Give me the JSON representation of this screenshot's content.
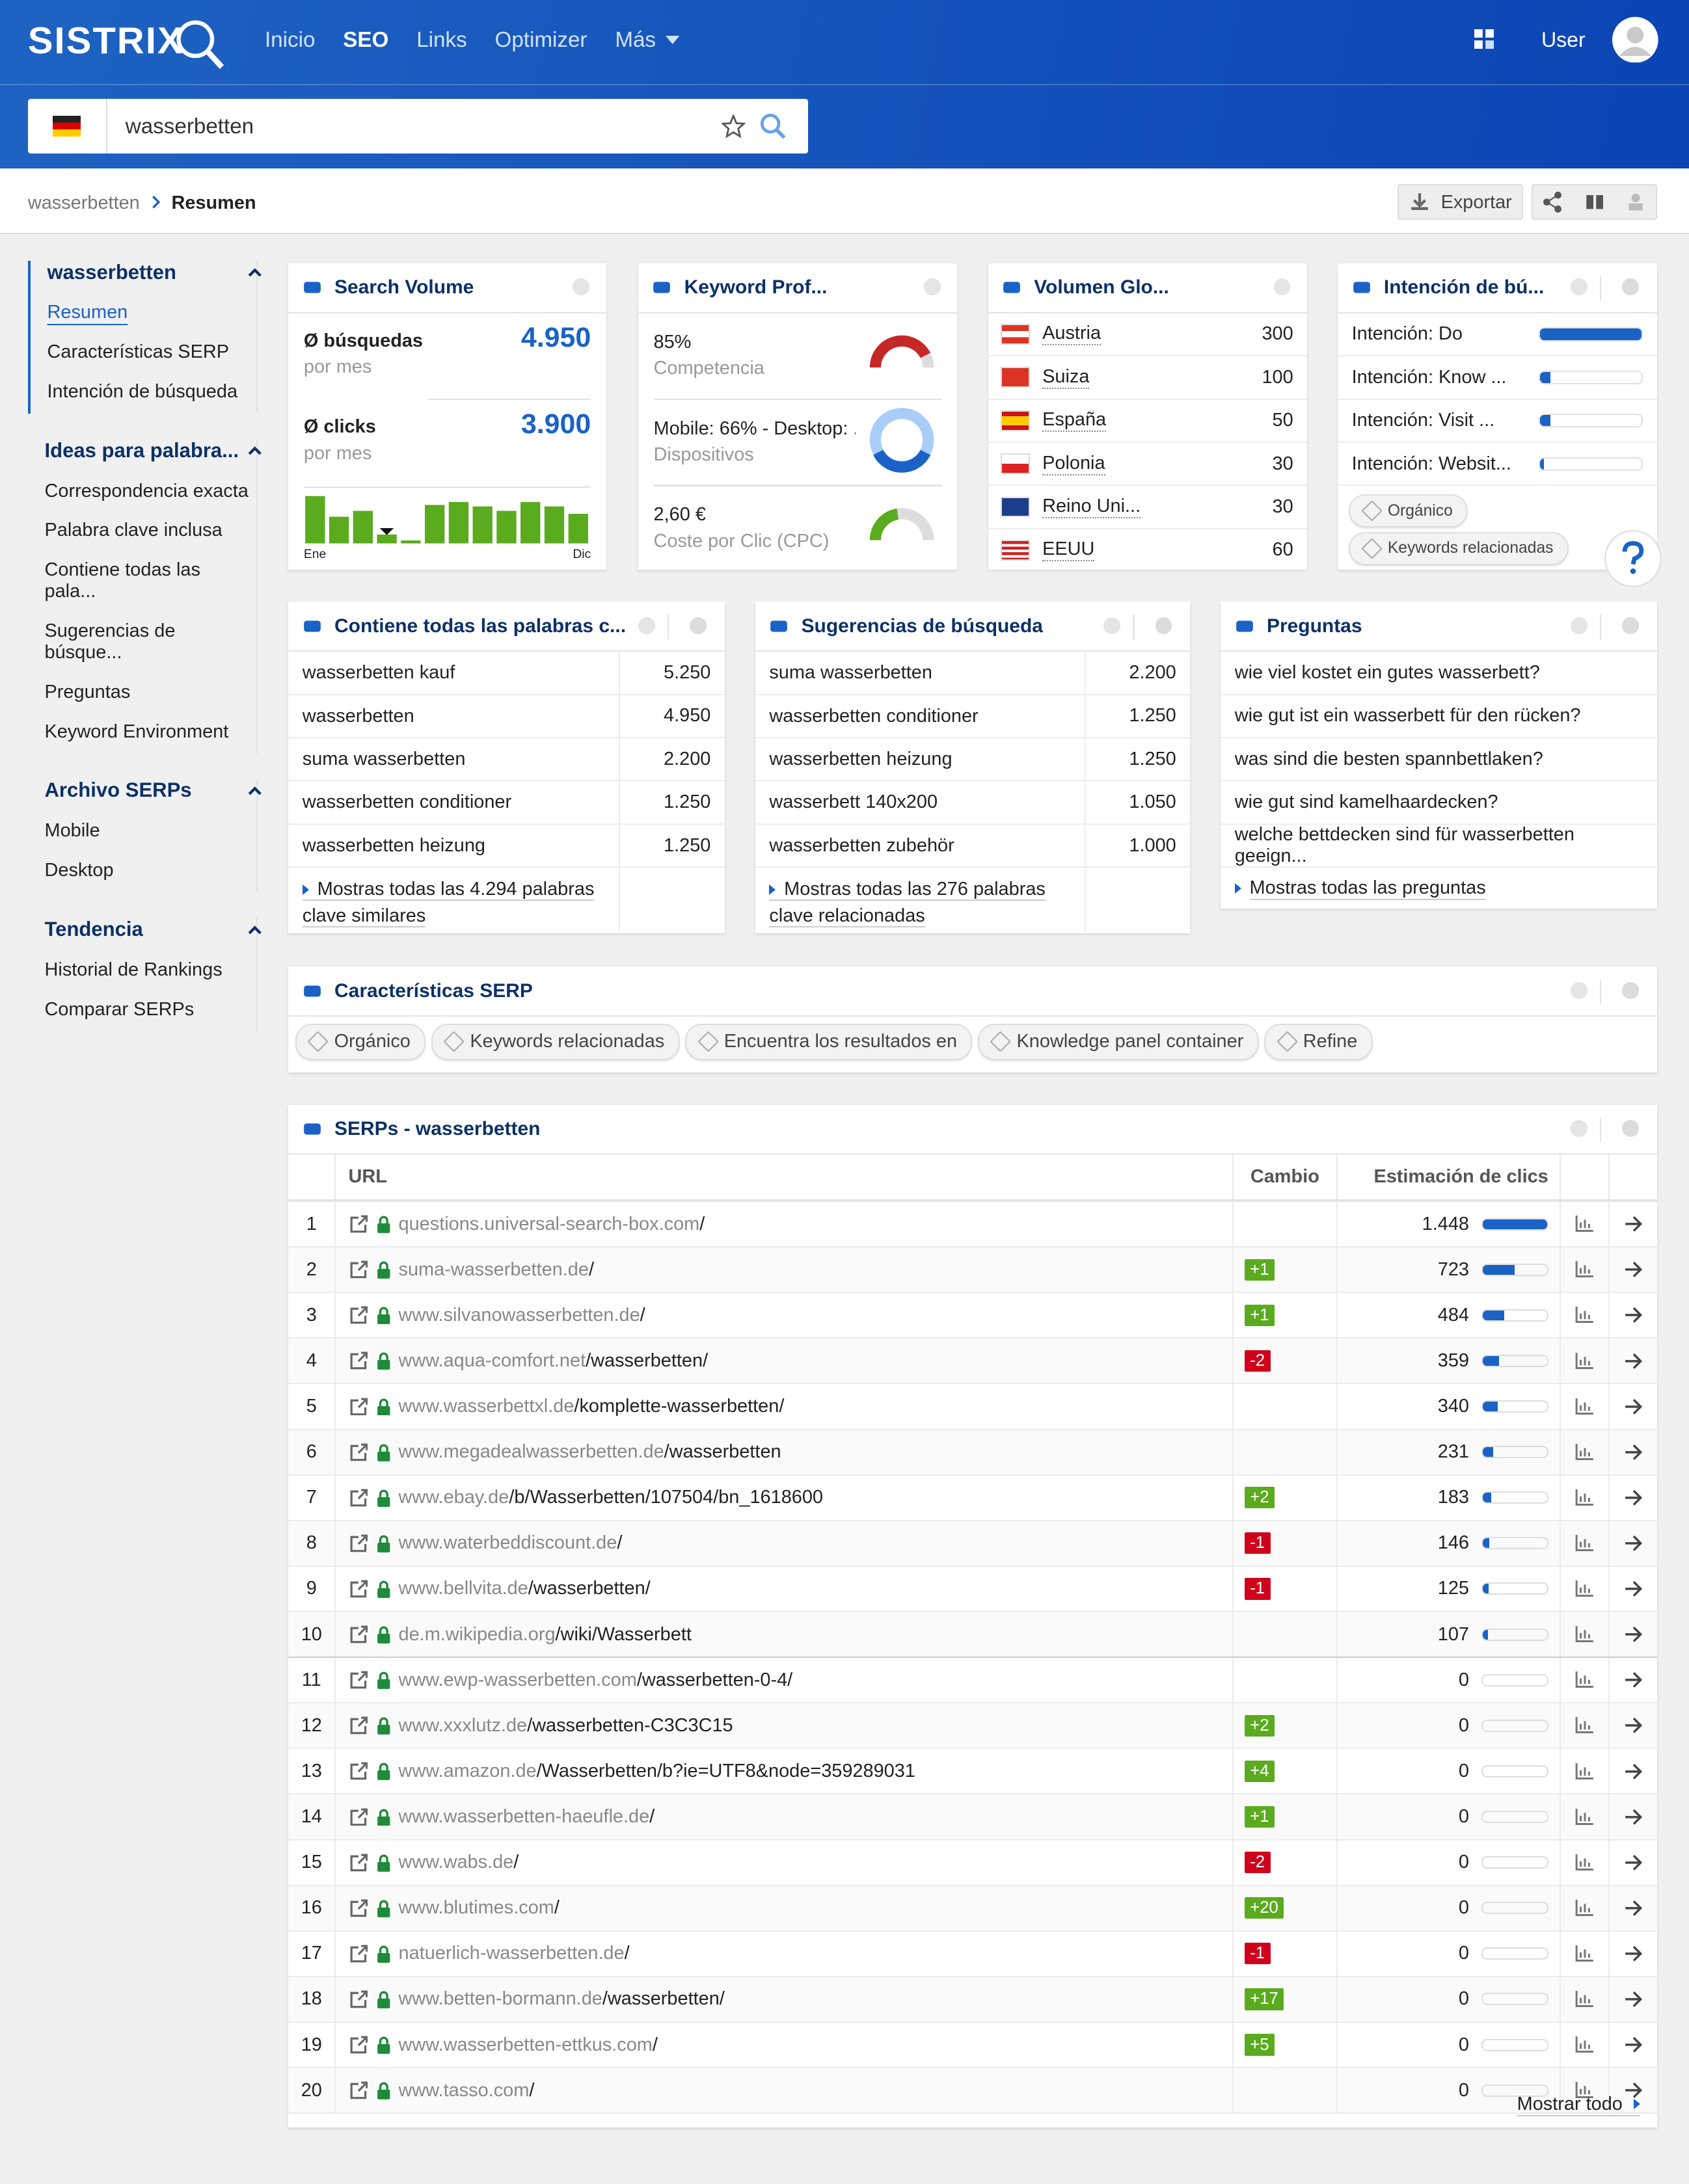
{
  "header": {
    "logo": "SISTRIX",
    "nav": [
      "Inicio",
      "SEO",
      "Links",
      "Optimizer",
      "Más"
    ],
    "user": "User",
    "search": "wasserbetten"
  },
  "breadcrumb": {
    "root": "wasserbetten",
    "current": "Resumen",
    "export": "Exportar"
  },
  "sidebar": [
    {
      "title": "wasserbetten",
      "items": [
        "Resumen",
        "Características SERP",
        "Intención de búsqueda"
      ]
    },
    {
      "title": "Ideas para palabra...",
      "items": [
        "Correspondencia exacta",
        "Palabra clave inclusa",
        "Contiene todas las pala...",
        "Sugerencias de búsque...",
        "Preguntas",
        "Keyword Environment"
      ]
    },
    {
      "title": "Archivo SERPs",
      "items": [
        "Mobile",
        "Desktop"
      ]
    },
    {
      "title": "Tendencia",
      "items": [
        "Historial de Rankings",
        "Comparar SERPs"
      ]
    }
  ],
  "search_volume": {
    "title": "Search Volume",
    "searches_label": "Ø búsquedas",
    "searches_sub": "por mes",
    "searches": "4.950",
    "clicks_label": "Ø clicks",
    "clicks_sub": "por mes",
    "clicks": "3.900",
    "trend": [
      32,
      18,
      22,
      6,
      2,
      26,
      28,
      25,
      22,
      28,
      25,
      20
    ],
    "trend_start": "Ene",
    "trend_end": "Dic"
  },
  "keyword_profile": {
    "title": "Keyword Prof...",
    "competition": {
      "value": 85,
      "label": "85%"
    },
    "competition_label": "Competencia",
    "devices": "Mobile: 66% - Desktop: ...",
    "devices_label": "Dispositivos",
    "cpc": "2,60 €",
    "cpc_label": "Coste por Clic (CPC)"
  },
  "global_volume": {
    "title": "Volumen Glo...",
    "rows": [
      {
        "country": "Austria",
        "volume": "300"
      },
      {
        "country": "Suiza",
        "volume": "100"
      },
      {
        "country": "España",
        "volume": "50"
      },
      {
        "country": "Polonia",
        "volume": "30"
      },
      {
        "country": "Reino Uni...",
        "volume": "30"
      },
      {
        "country": "EEUU",
        "volume": "60"
      }
    ]
  },
  "intent": {
    "title": "Intención de bú...",
    "rows": [
      {
        "label": "Intención: Do",
        "share": 100
      },
      {
        "label": "Intención: Know ...",
        "share": 10
      },
      {
        "label": "Intención: Visit ...",
        "share": 10
      },
      {
        "label": "Intención: Websit...",
        "share": 4
      }
    ],
    "tags": [
      "Orgánico",
      "Keywords relacionadas"
    ]
  },
  "contains_all": {
    "title": "Contiene todas las palabras c...",
    "rows": [
      [
        "wasserbetten kauf",
        "5.250"
      ],
      [
        "wasserbetten",
        "4.950"
      ],
      [
        "suma wasserbetten",
        "2.200"
      ],
      [
        "wasserbetten conditioner",
        "1.250"
      ],
      [
        "wasserbetten heizung",
        "1.250"
      ]
    ],
    "more": "Mostras todas las 4.294 palabras clave similares"
  },
  "suggestions": {
    "title": "Sugerencias de búsqueda",
    "rows": [
      [
        "suma wasserbetten",
        "2.200"
      ],
      [
        "wasserbetten conditioner",
        "1.250"
      ],
      [
        "wasserbetten heizung",
        "1.250"
      ],
      [
        "wasserbett 140x200",
        "1.050"
      ],
      [
        "wasserbetten zubehör",
        "1.000"
      ]
    ],
    "more": "Mostras todas las 276 palabras clave relacionadas"
  },
  "questions": {
    "title": "Preguntas",
    "rows": [
      "wie viel kostet ein gutes wasserbett?",
      "wie gut ist ein wasserbett für den rücken?",
      "was sind die besten spannbettlaken?",
      "wie gut sind kamelhaardecken?",
      "welche bettdecken sind für wasserbetten geeign..."
    ],
    "more": "Mostras todas las preguntas"
  },
  "serp_features": {
    "title": "Características SERP",
    "tags": [
      "Orgánico",
      "Keywords relacionadas",
      "Encuentra los resultados en",
      "Knowledge panel container",
      "Refine"
    ]
  },
  "serps": {
    "title": "SERPs - wasserbetten",
    "columns": [
      "URL",
      "Cambio",
      "Estimación de clics"
    ],
    "show_all": "Mostrar todo",
    "rows": [
      {
        "pos": 1,
        "domain": "questions.universal-search-box.com",
        "path": "/",
        "change": null,
        "clicks": {
          "value": 1448,
          "label": "1.448"
        }
      },
      {
        "pos": 2,
        "domain": "suma-wasserbetten.de",
        "path": "/",
        "change": "+1",
        "clicks": 723
      },
      {
        "pos": 3,
        "domain": "www.silvanowasserbetten.de",
        "path": "/",
        "change": "+1",
        "clicks": 484
      },
      {
        "pos": 4,
        "domain": "www.aqua-comfort.net",
        "path": "/wasserbetten/",
        "change": "-2",
        "clicks": 359
      },
      {
        "pos": 5,
        "domain": "www.wasserbettxl.de",
        "path": "/komplette-wasserbetten/",
        "change": null,
        "clicks": 340
      },
      {
        "pos": 6,
        "domain": "www.megadealwasserbetten.de",
        "path": "/wasserbetten",
        "change": null,
        "clicks": 231
      },
      {
        "pos": 7,
        "domain": "www.ebay.de",
        "path": "/b/Wasserbetten/107504/bn_1618600",
        "change": "+2",
        "clicks": 183
      },
      {
        "pos": 8,
        "domain": "www.waterbeddiscount.de",
        "path": "/",
        "change": "-1",
        "clicks": 146
      },
      {
        "pos": 9,
        "domain": "www.bellvita.de",
        "path": "/wasserbetten/",
        "change": "-1",
        "clicks": 125
      },
      {
        "pos": 10,
        "domain": "de.m.wikipedia.org",
        "path": "/wiki/Wasserbett",
        "change": null,
        "clicks": 107
      },
      {
        "pos": 11,
        "domain": "www.ewp-wasserbetten.com",
        "path": "/wasserbetten-0-4/",
        "change": null,
        "clicks": 0
      },
      {
        "pos": 12,
        "domain": "www.xxxlutz.de",
        "path": "/wasserbetten-C3C3C15",
        "change": "+2",
        "clicks": 0
      },
      {
        "pos": 13,
        "domain": "www.amazon.de",
        "path": "/Wasserbetten/b?ie=UTF8&node=359289031",
        "change": "+4",
        "clicks": 0
      },
      {
        "pos": 14,
        "domain": "www.wasserbetten-haeufle.de",
        "path": "/",
        "change": "+1",
        "clicks": 0
      },
      {
        "pos": 15,
        "domain": "www.wabs.de",
        "path": "/",
        "change": "-2",
        "clicks": 0
      },
      {
        "pos": 16,
        "domain": "www.blutimes.com",
        "path": "/",
        "change": "+20",
        "clicks": 0
      },
      {
        "pos": 17,
        "domain": "natuerlich-wasserbetten.de",
        "path": "/",
        "change": "-1",
        "clicks": 0
      },
      {
        "pos": 18,
        "domain": "www.betten-bormann.de",
        "path": "/wasserbetten/",
        "change": "+17",
        "clicks": 0
      },
      {
        "pos": 19,
        "domain": "www.wasserbetten-ettkus.com",
        "path": "/",
        "change": "+5",
        "clicks": 0
      },
      {
        "pos": 20,
        "domain": "www.tasso.com",
        "path": "/",
        "change": null,
        "clicks": 0
      }
    ]
  }
}
